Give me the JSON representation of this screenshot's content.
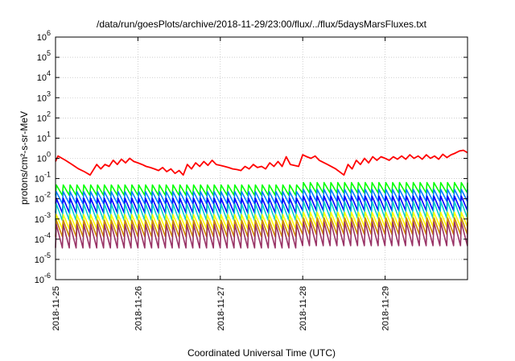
{
  "chart_data": {
    "type": "line",
    "title": "/data/run/goesPlots/archive/2018-11-29/23:00/flux/../flux/5daysMarsFluxes.txt",
    "xlabel": "Coordinated Universal Time (UTC)",
    "ylabel": "protons/cm²-s-sr-MeV",
    "yscale": "log",
    "ylim": [
      1e-06,
      1000000.0
    ],
    "xlim": [
      0,
      5
    ],
    "x_ticks": [
      {
        "x": 0,
        "label": "2018-11-25"
      },
      {
        "x": 1,
        "label": "2018-11-26"
      },
      {
        "x": 2,
        "label": "2018-11-27"
      },
      {
        "x": 3,
        "label": "2018-11-28"
      },
      {
        "x": 4,
        "label": "2018-11-29"
      }
    ],
    "y_ticks": [
      {
        "value": 1e-06,
        "base": "10",
        "exp": "-6"
      },
      {
        "value": 1e-05,
        "base": "10",
        "exp": "-5"
      },
      {
        "value": 0.0001,
        "base": "10",
        "exp": "-4"
      },
      {
        "value": 0.001,
        "base": "10",
        "exp": "-3"
      },
      {
        "value": 0.01,
        "base": "10",
        "exp": "-2"
      },
      {
        "value": 0.1,
        "base": "10",
        "exp": "-1"
      },
      {
        "value": 1.0,
        "base": "10",
        "exp": "0"
      },
      {
        "value": 10.0,
        "base": "10",
        "exp": "1"
      },
      {
        "value": 100.0,
        "base": "10",
        "exp": "2"
      },
      {
        "value": 1000.0,
        "base": "10",
        "exp": "3"
      },
      {
        "value": 10000.0,
        "base": "10",
        "exp": "4"
      },
      {
        "value": 100000.0,
        "base": "10",
        "exp": "5"
      },
      {
        "value": 1000000.0,
        "base": "10",
        "exp": "6"
      }
    ],
    "grid": true,
    "series": [
      {
        "color": "#ff0000",
        "x": [
          0,
          0.03,
          0.12,
          0.2,
          0.28,
          0.35,
          0.42,
          0.5,
          0.55,
          0.6,
          0.65,
          0.7,
          0.75,
          0.8,
          0.85,
          0.9,
          0.95,
          1.0,
          1.05,
          1.1,
          1.15,
          1.2,
          1.25,
          1.3,
          1.35,
          1.4,
          1.45,
          1.5,
          1.55,
          1.6,
          1.65,
          1.7,
          1.75,
          1.8,
          1.85,
          1.9,
          1.95,
          2.0,
          2.05,
          2.1,
          2.15,
          2.2,
          2.25,
          2.3,
          2.35,
          2.4,
          2.45,
          2.5,
          2.55,
          2.6,
          2.65,
          2.7,
          2.75,
          2.8,
          2.85,
          2.95,
          3.0,
          3.05,
          3.1,
          3.15,
          3.2,
          3.3,
          3.4,
          3.5,
          3.55,
          3.6,
          3.65,
          3.7,
          3.75,
          3.8,
          3.85,
          3.9,
          3.95,
          4.0,
          4.05,
          4.1,
          4.15,
          4.2,
          4.25,
          4.3,
          4.35,
          4.4,
          4.45,
          4.5,
          4.55,
          4.6,
          4.65,
          4.7,
          4.75,
          4.8,
          4.85,
          4.9,
          4.95,
          5.0
        ],
        "y": [
          0.7,
          1.3,
          0.8,
          0.5,
          0.3,
          0.22,
          0.15,
          0.5,
          0.3,
          0.5,
          0.4,
          0.8,
          0.5,
          0.9,
          0.6,
          1.0,
          0.7,
          0.6,
          0.5,
          0.4,
          0.35,
          0.3,
          0.25,
          0.35,
          0.22,
          0.3,
          0.18,
          0.25,
          0.15,
          0.5,
          0.3,
          0.6,
          0.4,
          0.7,
          0.45,
          0.8,
          0.5,
          0.45,
          0.4,
          0.35,
          0.3,
          0.28,
          0.25,
          0.4,
          0.3,
          0.5,
          0.35,
          0.4,
          0.3,
          0.6,
          0.4,
          0.7,
          0.4,
          1.2,
          0.5,
          0.4,
          1.5,
          1.2,
          1.0,
          1.3,
          0.8,
          0.5,
          0.3,
          0.15,
          0.5,
          0.3,
          0.8,
          0.5,
          1.0,
          0.6,
          1.2,
          0.8,
          1.2,
          1.0,
          0.8,
          1.2,
          0.9,
          1.3,
          0.9,
          1.5,
          1.0,
          1.3,
          0.9,
          1.5,
          1.0,
          1.3,
          0.9,
          1.6,
          1.1,
          1.5,
          1.8,
          2.3,
          2.5,
          1.9
        ]
      },
      {
        "color": "#00ff00",
        "base": 0.022,
        "amp": 2.2,
        "jump": 1.3
      },
      {
        "color": "#0080ff",
        "base": 0.009,
        "amp": 2.5,
        "jump": 1.3
      },
      {
        "color": "#0000ff",
        "base": 0.0035,
        "amp": 3.0,
        "jump": 1.3
      },
      {
        "color": "#00cccc",
        "base": 0.0016,
        "amp": 3.5,
        "jump": 1.3
      },
      {
        "color": "#ffff00",
        "base": 0.00055,
        "amp": 3.0,
        "jump": 1.3
      },
      {
        "color": "#cc8800",
        "base": 0.00025,
        "amp": 3.5,
        "jump": 1.3
      },
      {
        "color": "#993366",
        "base": 9e-05,
        "amp": 6.0,
        "jump": 1.3
      }
    ],
    "sawtooth_period": 0.0833,
    "sawtooth_jump_at": 2.95
  }
}
